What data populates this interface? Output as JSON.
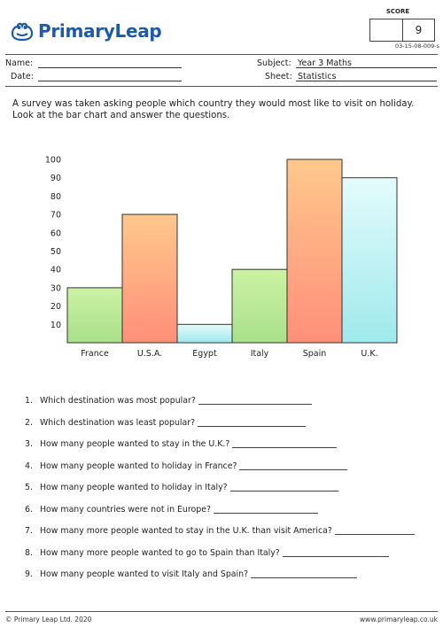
{
  "header": {
    "logo_text": "PrimaryLeap",
    "score_label": "SCORE",
    "score_value": "9",
    "code": "03-15-08-009-s"
  },
  "form": {
    "name_label": "Name:",
    "date_label": "Date:",
    "subject_label": "Subject:",
    "subject_value": "Year 3 Maths",
    "sheet_label": "Sheet:",
    "sheet_value": "Statistics"
  },
  "intro": "A survey was taken asking people which country they would most like to visit on holiday. Look at the bar chart and answer the questions.",
  "chart_data": {
    "type": "bar",
    "categories": [
      "France",
      "U.S.A.",
      "Egypt",
      "Italy",
      "Spain",
      "U.K."
    ],
    "values": [
      30,
      70,
      10,
      40,
      100,
      90
    ],
    "ylim": [
      0,
      100
    ],
    "yticks": [
      10,
      20,
      30,
      40,
      50,
      60,
      70,
      80,
      90,
      100
    ],
    "title": "",
    "xlabel": "",
    "ylabel": "",
    "grid": false,
    "colors": {
      "green": [
        "#ccf2a4",
        "#a9e08a"
      ],
      "orange": [
        "#ffc88c",
        "#ff8f7a"
      ],
      "cyan": [
        "#e4fbfb",
        "#9fe9ec"
      ]
    },
    "bar_colors": [
      "green",
      "orange",
      "cyan",
      "green",
      "orange",
      "cyan"
    ]
  },
  "questions": [
    {
      "num": "1.",
      "text": "Which destination was most popular?"
    },
    {
      "num": "2.",
      "text": "Which destination was least popular?"
    },
    {
      "num": "3.",
      "text": "How many people wanted to stay in the U.K.?"
    },
    {
      "num": "4.",
      "text": "How many people wanted to holiday in France?"
    },
    {
      "num": "5.",
      "text": "How many people wanted to holiday in Italy?"
    },
    {
      "num": "6.",
      "text": "How many countries were not in Europe?"
    },
    {
      "num": "7.",
      "text": "How many more people wanted to stay in the U.K. than visit America?"
    },
    {
      "num": "8.",
      "text": "How many more people wanted to go to Spain than Italy?"
    },
    {
      "num": "9.",
      "text": "How many people wanted to visit Italy and Spain?"
    }
  ],
  "footer": {
    "left": "© Primary Leap Ltd. 2020",
    "right": "www.primaryleap.co.uk"
  }
}
